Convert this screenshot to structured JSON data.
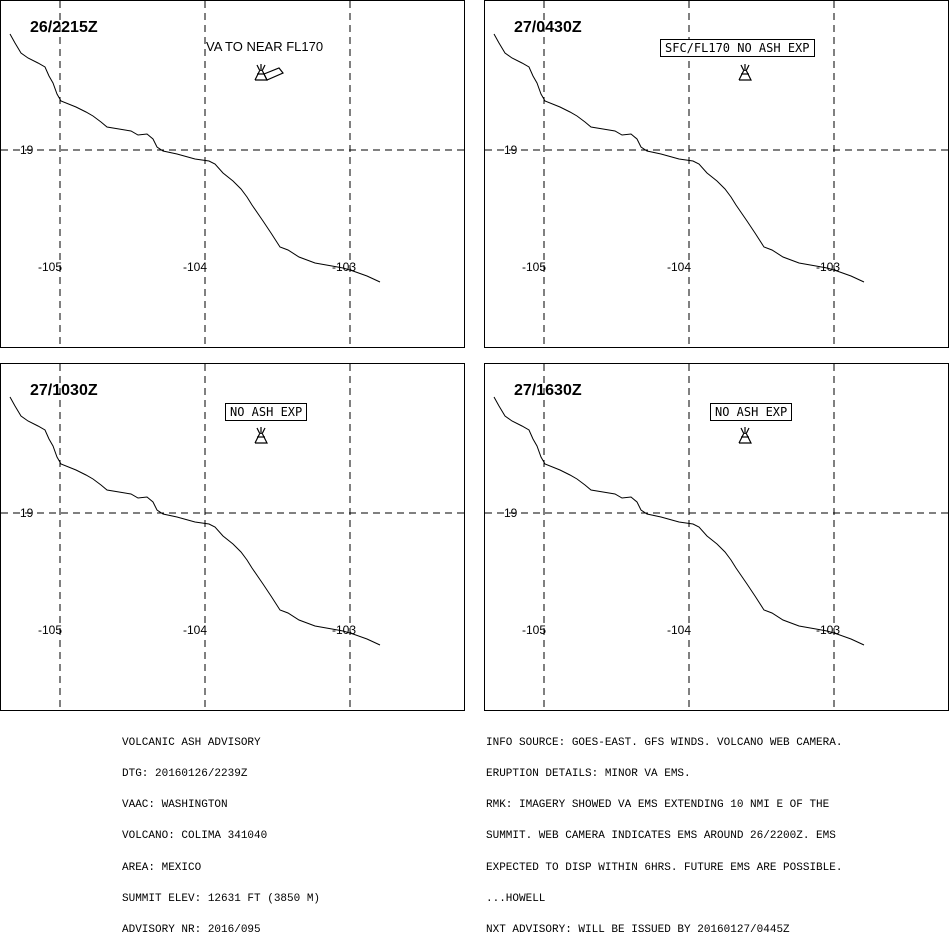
{
  "panels": [
    {
      "time": "26/2215Z",
      "forecast": "VA TO NEAR FL170",
      "boxed": false
    },
    {
      "time": "27/0430Z",
      "forecast": "SFC/FL170 NO ASH EXP",
      "boxed": true
    },
    {
      "time": "27/1030Z",
      "forecast": "NO ASH EXP",
      "boxed": true
    },
    {
      "time": "27/1630Z",
      "forecast": "NO ASH EXP",
      "boxed": true
    }
  ],
  "grid": {
    "lon_labels": [
      "-105",
      "-104",
      "-103"
    ],
    "lat_labels": [
      "19"
    ]
  },
  "advisory_left": [
    "VOLCANIC ASH ADVISORY",
    "DTG: 20160126/2239Z",
    "VAAC: WASHINGTON",
    "VOLCANO: COLIMA 341040",
    "AREA: MEXICO",
    "SUMMIT ELEV: 12631 FT (3850 M)",
    "ADVISORY NR: 2016/095"
  ],
  "advisory_right": [
    "INFO SOURCE: GOES-EAST. GFS WINDS. VOLCANO WEB CAMERA.",
    "ERUPTION DETAILS: MINOR VA EMS.",
    "RMK: IMAGERY SHOWED VA EMS EXTENDING 10 NMI E OF THE",
    "SUMMIT. WEB CAMERA INDICATES EMS AROUND 26/2200Z. EMS",
    "EXPECTED TO DISP WITHIN 6HRS. FUTURE EMS ARE POSSIBLE.",
    "...HOWELL",
    "NXT ADVISORY: WILL BE ISSUED BY 20160127/0445Z"
  ],
  "colors": {
    "line": "#000000",
    "background": "#ffffff"
  },
  "icons": {
    "volcano": "volcano-icon",
    "ash_cloud": "ash-cloud-polygon"
  }
}
